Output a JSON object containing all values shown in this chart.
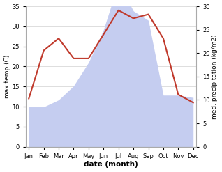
{
  "months": [
    "Jan",
    "Feb",
    "Mar",
    "Apr",
    "May",
    "Jun",
    "Jul",
    "Aug",
    "Sep",
    "Oct",
    "Nov",
    "Dec"
  ],
  "temperature": [
    12,
    24,
    27,
    22,
    22,
    28,
    34,
    32,
    33,
    27,
    13,
    11
  ],
  "precipitation": [
    8.5,
    8.5,
    10,
    13,
    18,
    25,
    35,
    29,
    27,
    11,
    11,
    10.5
  ],
  "temp_color": "#c0392b",
  "precip_fill_color": "#c5cdf0",
  "left_ylim": [
    0,
    35
  ],
  "right_ylim": [
    0,
    30
  ],
  "left_yticks": [
    0,
    5,
    10,
    15,
    20,
    25,
    30,
    35
  ],
  "right_yticks": [
    0,
    5,
    10,
    15,
    20,
    25,
    30
  ],
  "xlabel": "date (month)",
  "ylabel_left": "max temp (C)",
  "ylabel_right": "med. precipitation (kg/m2)",
  "background_color": "#ffffff",
  "grid_color": "#d0d0d0",
  "temp_linewidth": 1.5,
  "font_size_ticks": 6.0,
  "font_size_labels": 6.5,
  "font_size_xlabel": 7.5
}
